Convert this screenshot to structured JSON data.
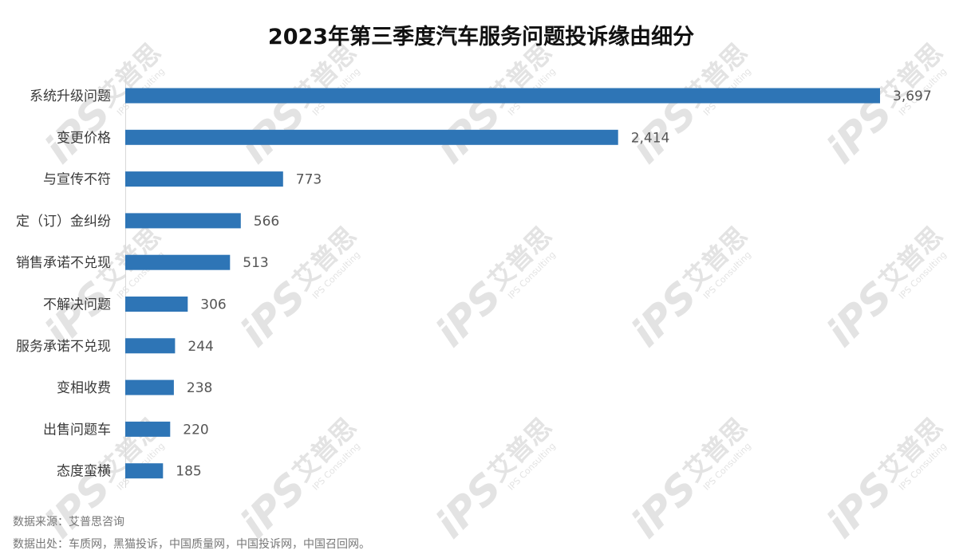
{
  "colors": {
    "bar": "#2e75b6",
    "title": "#111111",
    "label": "#3a3a3a",
    "value": "#555555",
    "watermark": "#e3e3e3"
  },
  "watermark": {
    "logo": "iPS",
    "brand_cn": "艾普思",
    "brand_en": "IPS Consulting"
  },
  "chart_data": {
    "type": "bar",
    "orientation": "horizontal",
    "title": "2023年第三季度汽车服务问题投诉缘由细分",
    "xlabel": "",
    "ylabel": "",
    "categories": [
      "系统升级问题",
      "变更价格",
      "与宣传不符",
      "定（订）金纠纷",
      "销售承诺不兑现",
      "不解决问题",
      "服务承诺不兑现",
      "变相收费",
      "出售问题车",
      "态度蛮横"
    ],
    "values": [
      3697,
      2414,
      773,
      566,
      513,
      306,
      244,
      238,
      220,
      185
    ],
    "value_labels": [
      "3,697",
      "2,414",
      "773",
      "566",
      "513",
      "306",
      "244",
      "238",
      "220",
      "185"
    ],
    "xlim": [
      0,
      3697
    ],
    "grid": false,
    "legend": "none"
  },
  "footer": {
    "source": "数据来源：艾普思咨询",
    "origin": "数据出处：车质网，黑猫投诉，中国质量网，中国投诉网，中国召回网。"
  }
}
